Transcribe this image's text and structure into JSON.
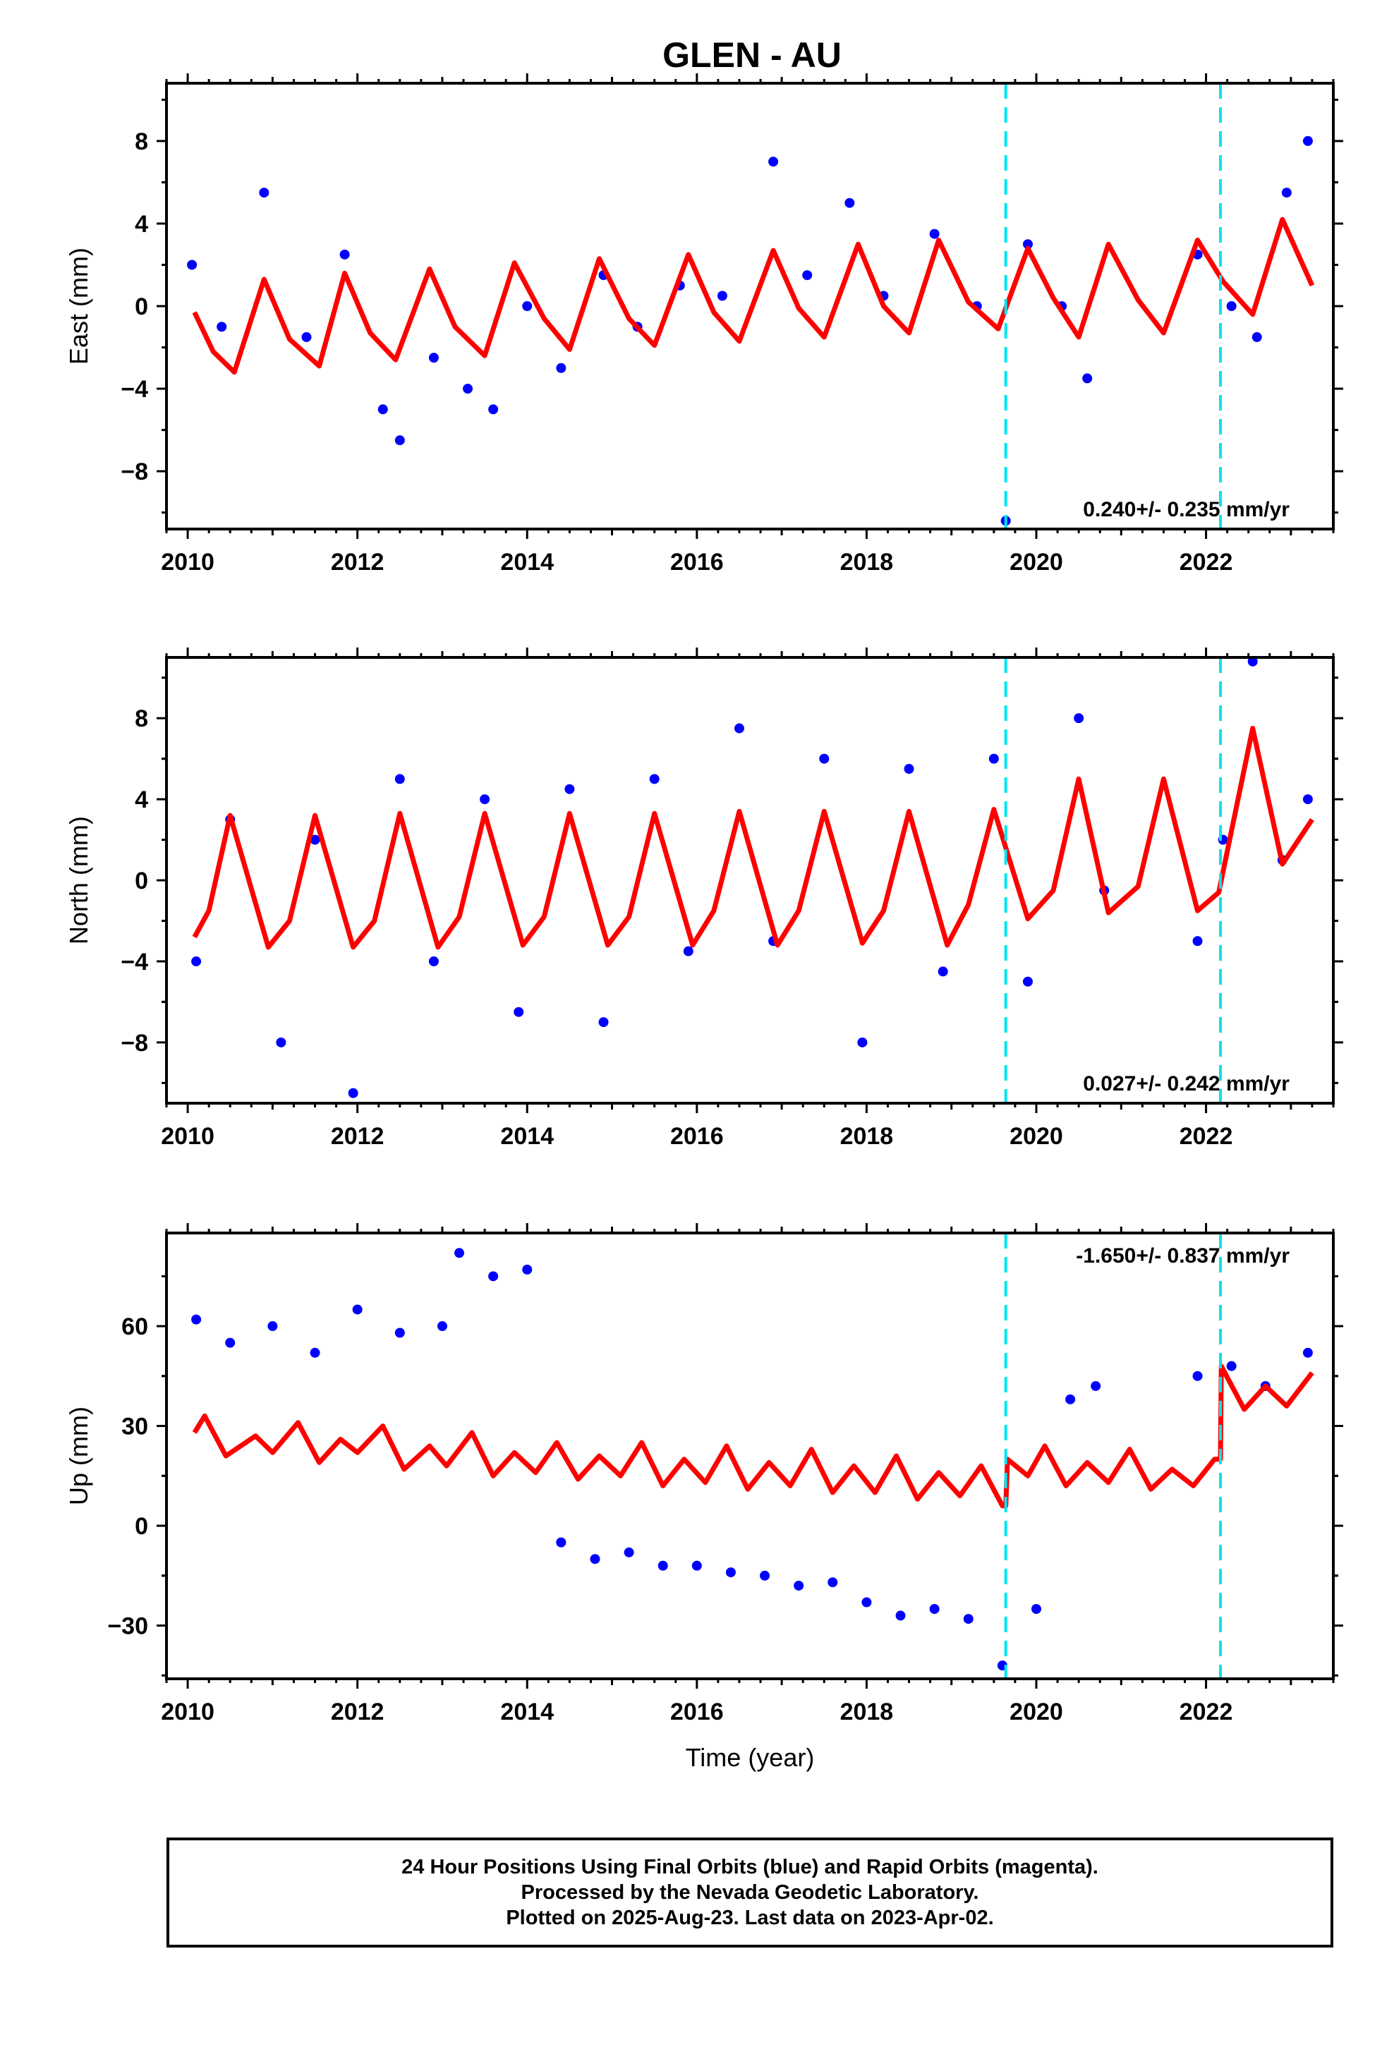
{
  "title": "GLEN - AU",
  "footer": {
    "line1": "24 Hour Positions Using Final Orbits (blue) and Rapid Orbits (magenta).",
    "line2": "Processed by the Nevada Geodetic Laboratory.",
    "line3": "Plotted on 2025-Aug-23. Last data on 2023-Apr-02."
  },
  "colors": {
    "final_orbits": "#0000ff",
    "model": "#ff0000",
    "offset_marker": "#00e5ee"
  },
  "chart_data": [
    {
      "type": "scatter",
      "panel": "east",
      "ylabel": "East (mm)",
      "xlabel": "",
      "xlim": [
        2009.75,
        2023.5
      ],
      "ylim": [
        -10.8,
        10.8
      ],
      "xticks": [
        2010,
        2012,
        2014,
        2016,
        2018,
        2020,
        2022
      ],
      "yticks": [
        -8,
        -4,
        0,
        4,
        8
      ],
      "rate_label": "0.240+/- 0.235 mm/yr",
      "offset_epochs": [
        2019.64,
        2022.17
      ],
      "model": {
        "x": [
          2010.08,
          2010.3,
          2010.55,
          2010.9,
          2011.2,
          2011.55,
          2011.85,
          2012.15,
          2012.45,
          2012.85,
          2013.15,
          2013.5,
          2013.85,
          2014.2,
          2014.5,
          2014.85,
          2015.2,
          2015.5,
          2015.9,
          2016.2,
          2016.5,
          2016.9,
          2017.2,
          2017.5,
          2017.9,
          2018.2,
          2018.5,
          2018.85,
          2019.2,
          2019.55,
          2019.9,
          2020.2,
          2020.5,
          2020.85,
          2021.2,
          2021.5,
          2021.9,
          2022.2,
          2022.55,
          2022.9,
          2023.25
        ],
        "y": [
          -0.3,
          -2.2,
          -3.2,
          1.3,
          -1.6,
          -2.9,
          1.6,
          -1.3,
          -2.6,
          1.8,
          -1.0,
          -2.4,
          2.1,
          -0.6,
          -2.1,
          2.3,
          -0.6,
          -1.9,
          2.5,
          -0.3,
          -1.7,
          2.7,
          -0.1,
          -1.5,
          3.0,
          0.0,
          -1.3,
          3.2,
          0.2,
          -1.1,
          2.8,
          0.4,
          -1.5,
          3.0,
          0.3,
          -1.3,
          3.2,
          1.2,
          -0.4,
          4.2,
          1.0
        ]
      },
      "points": {
        "x": [
          2010.05,
          2010.4,
          2010.9,
          2011.4,
          2011.85,
          2012.3,
          2012.5,
          2012.9,
          2013.3,
          2013.6,
          2014.0,
          2014.4,
          2014.9,
          2015.3,
          2015.8,
          2016.3,
          2016.9,
          2017.3,
          2017.8,
          2018.2,
          2018.8,
          2019.3,
          2019.64,
          2019.9,
          2020.3,
          2020.6,
          2021.9,
          2022.3,
          2022.6,
          2022.95,
          2023.2
        ],
        "y": [
          2.0,
          -1.0,
          5.5,
          -1.5,
          2.5,
          -5.0,
          -6.5,
          -2.5,
          -4.0,
          -5.0,
          0.0,
          -3.0,
          1.5,
          -1.0,
          1.0,
          0.5,
          7.0,
          1.5,
          5.0,
          0.5,
          3.5,
          0.0,
          -10.4,
          3.0,
          0.0,
          -3.5,
          2.5,
          0.0,
          -1.5,
          5.5,
          8.0
        ]
      }
    },
    {
      "type": "scatter",
      "panel": "north",
      "ylabel": "North (mm)",
      "xlabel": "",
      "xlim": [
        2009.75,
        2023.5
      ],
      "ylim": [
        -11.0,
        11.0
      ],
      "xticks": [
        2010,
        2012,
        2014,
        2016,
        2018,
        2020,
        2022
      ],
      "yticks": [
        -8,
        -4,
        0,
        4,
        8
      ],
      "rate_label": "0.027+/- 0.242 mm/yr",
      "offset_epochs": [
        2019.64,
        2022.17
      ],
      "model": {
        "x": [
          2010.08,
          2010.25,
          2010.5,
          2010.95,
          2011.2,
          2011.5,
          2011.95,
          2012.2,
          2012.5,
          2012.95,
          2013.2,
          2013.5,
          2013.95,
          2014.2,
          2014.5,
          2014.95,
          2015.2,
          2015.5,
          2015.95,
          2016.2,
          2016.5,
          2016.95,
          2017.2,
          2017.5,
          2017.95,
          2018.2,
          2018.5,
          2018.95,
          2019.2,
          2019.5,
          2019.9,
          2020.2,
          2020.5,
          2020.85,
          2021.2,
          2021.5,
          2021.9,
          2022.15,
          2022.55,
          2022.9,
          2023.25
        ],
        "y": [
          -2.8,
          -1.5,
          3.2,
          -3.3,
          -2.0,
          3.2,
          -3.3,
          -2.0,
          3.3,
          -3.3,
          -1.8,
          3.3,
          -3.2,
          -1.8,
          3.3,
          -3.2,
          -1.8,
          3.3,
          -3.2,
          -1.5,
          3.4,
          -3.2,
          -1.5,
          3.4,
          -3.1,
          -1.5,
          3.4,
          -3.2,
          -1.2,
          3.5,
          -1.9,
          -0.5,
          5.0,
          -1.6,
          -0.3,
          5.0,
          -1.5,
          -0.6,
          7.5,
          0.8,
          3.0
        ]
      },
      "points": {
        "x": [
          2010.1,
          2010.5,
          2011.1,
          2011.5,
          2011.95,
          2012.5,
          2012.9,
          2013.5,
          2013.9,
          2014.5,
          2014.9,
          2015.5,
          2015.9,
          2016.5,
          2016.9,
          2017.5,
          2017.95,
          2018.5,
          2018.9,
          2019.5,
          2019.9,
          2020.5,
          2020.8,
          2021.9,
          2022.2,
          2022.55,
          2022.9,
          2023.2
        ],
        "y": [
          -4.0,
          3.0,
          -8.0,
          2.0,
          -10.5,
          5.0,
          -4.0,
          4.0,
          -6.5,
          4.5,
          -7.0,
          5.0,
          -3.5,
          7.5,
          -3.0,
          6.0,
          -8.0,
          5.5,
          -4.5,
          6.0,
          -5.0,
          8.0,
          -0.5,
          -3.0,
          2.0,
          10.8,
          1.0,
          4.0
        ]
      }
    },
    {
      "type": "scatter",
      "panel": "up",
      "ylabel": "Up (mm)",
      "xlabel": "Time (year)",
      "xlim": [
        2009.75,
        2023.5
      ],
      "ylim": [
        -46.0,
        88.0
      ],
      "xticks": [
        2010,
        2012,
        2014,
        2016,
        2018,
        2020,
        2022
      ],
      "yticks": [
        -30,
        0,
        30,
        60
      ],
      "rate_label": "-1.650+/- 0.837 mm/yr",
      "offset_epochs": [
        2019.64,
        2022.17
      ],
      "model": {
        "x": [
          2010.08,
          2010.2,
          2010.45,
          2010.8,
          2011.0,
          2011.3,
          2011.55,
          2011.8,
          2012.0,
          2012.3,
          2012.55,
          2012.85,
          2013.05,
          2013.35,
          2013.6,
          2013.85,
          2014.1,
          2014.35,
          2014.6,
          2014.85,
          2015.1,
          2015.35,
          2015.6,
          2015.85,
          2016.1,
          2016.35,
          2016.6,
          2016.85,
          2017.1,
          2017.35,
          2017.6,
          2017.85,
          2018.1,
          2018.35,
          2018.6,
          2018.85,
          2019.1,
          2019.35,
          2019.6,
          2019.64,
          2019.66,
          2019.9,
          2020.1,
          2020.35,
          2020.6,
          2020.85,
          2021.1,
          2021.35,
          2021.6,
          2021.85,
          2022.1,
          2022.17,
          2022.18,
          2022.45,
          2022.7,
          2022.95,
          2023.25
        ],
        "y": [
          28,
          33,
          21,
          27,
          22,
          31,
          19,
          26,
          22,
          30,
          17,
          24,
          18,
          28,
          15,
          22,
          16,
          25,
          14,
          21,
          15,
          25,
          12,
          20,
          13,
          24,
          11,
          19,
          12,
          23,
          10,
          18,
          10,
          21,
          8,
          16,
          9,
          18,
          6,
          6,
          20,
          15,
          24,
          12,
          19,
          13,
          23,
          11,
          17,
          12,
          20,
          20,
          48,
          35,
          42,
          36,
          46
        ]
      },
      "points": {
        "x": [
          2010.1,
          2010.5,
          2011.0,
          2011.5,
          2012.0,
          2012.5,
          2013.0,
          2013.2,
          2013.6,
          2014.0,
          2014.4,
          2014.8,
          2015.2,
          2015.6,
          2016.0,
          2016.4,
          2016.8,
          2017.2,
          2017.6,
          2018.0,
          2018.4,
          2018.8,
          2019.2,
          2019.6,
          2020.0,
          2020.4,
          2020.7,
          2021.9,
          2022.3,
          2022.7,
          2023.2
        ],
        "y": [
          62,
          55,
          60,
          52,
          65,
          58,
          60,
          82,
          75,
          77,
          -5,
          -10,
          -8,
          -12,
          -12,
          -14,
          -15,
          -18,
          -17,
          -23,
          -27,
          -25,
          -28,
          -42,
          -25,
          38,
          42,
          45,
          48,
          42,
          52
        ]
      }
    }
  ]
}
